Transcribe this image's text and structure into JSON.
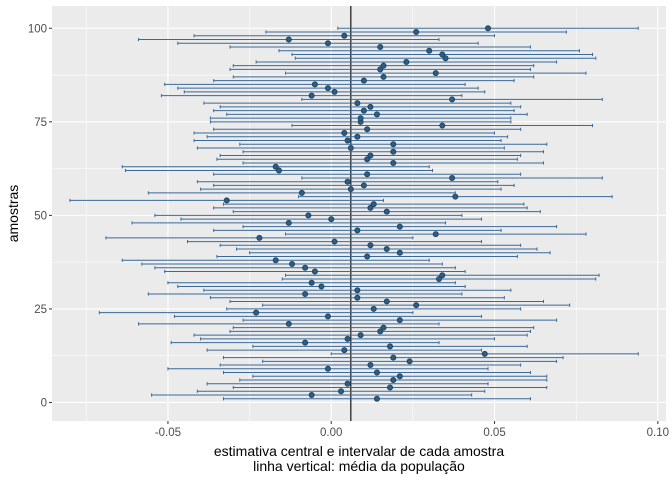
{
  "chart_data": {
    "type": "interval-dotplot",
    "xlabel_line1": "estimativa central e intervalar de cada amostra",
    "xlabel_line2": "linha vertical: média da população",
    "ylabel": "amostras",
    "xlim": [
      -0.0855,
      0.1025
    ],
    "ylim": [
      -4.95,
      105.95
    ],
    "x_ticks": [
      -0.05,
      0.0,
      0.05,
      0.1
    ],
    "x_tick_labels": [
      "-0.05",
      "0.00",
      "0.05",
      "0.10"
    ],
    "y_ticks": [
      0,
      25,
      50,
      75,
      100
    ],
    "y_tick_labels": [
      "0",
      "25",
      "50",
      "75",
      "100"
    ],
    "reference_line_x": 0.006,
    "colors": {
      "interval": "#3a6a9a",
      "point_fill": "#2c5d85",
      "point_edge": "#1f3f5a",
      "panel": "#ebebeb",
      "reference_line": "#000000"
    },
    "samples": [
      {
        "id": 1,
        "est": 0.014,
        "lo": -0.033,
        "hi": 0.061
      },
      {
        "id": 2,
        "est": -0.006,
        "lo": -0.055,
        "hi": 0.043
      },
      {
        "id": 3,
        "est": 0.003,
        "lo": -0.041,
        "hi": 0.047
      },
      {
        "id": 4,
        "est": 0.018,
        "lo": -0.03,
        "hi": 0.066
      },
      {
        "id": 5,
        "est": 0.005,
        "lo": -0.038,
        "hi": 0.048
      },
      {
        "id": 6,
        "est": 0.019,
        "lo": -0.028,
        "hi": 0.066
      },
      {
        "id": 7,
        "est": 0.021,
        "lo": -0.024,
        "hi": 0.066
      },
      {
        "id": 8,
        "est": 0.014,
        "lo": -0.033,
        "hi": 0.061
      },
      {
        "id": 9,
        "est": -0.001,
        "lo": -0.05,
        "hi": 0.048
      },
      {
        "id": 10,
        "est": 0.012,
        "lo": -0.034,
        "hi": 0.058
      },
      {
        "id": 11,
        "est": 0.024,
        "lo": -0.021,
        "hi": 0.069
      },
      {
        "id": 12,
        "est": 0.019,
        "lo": -0.033,
        "hi": 0.071
      },
      {
        "id": 13,
        "est": 0.047,
        "lo": 0.0,
        "hi": 0.094
      },
      {
        "id": 14,
        "est": 0.004,
        "lo": -0.038,
        "hi": 0.046
      },
      {
        "id": 15,
        "est": 0.018,
        "lo": -0.024,
        "hi": 0.06
      },
      {
        "id": 16,
        "est": -0.008,
        "lo": -0.049,
        "hi": 0.033
      },
      {
        "id": 17,
        "est": 0.005,
        "lo": -0.04,
        "hi": 0.05
      },
      {
        "id": 18,
        "est": 0.009,
        "lo": -0.042,
        "hi": 0.06
      },
      {
        "id": 19,
        "est": 0.015,
        "lo": -0.031,
        "hi": 0.061
      },
      {
        "id": 20,
        "est": 0.016,
        "lo": -0.03,
        "hi": 0.062
      },
      {
        "id": 21,
        "est": -0.013,
        "lo": -0.059,
        "hi": 0.033
      },
      {
        "id": 22,
        "est": 0.021,
        "lo": -0.027,
        "hi": 0.069
      },
      {
        "id": 23,
        "est": -0.001,
        "lo": -0.048,
        "hi": 0.046
      },
      {
        "id": 24,
        "est": -0.023,
        "lo": -0.071,
        "hi": 0.025
      },
      {
        "id": 25,
        "est": 0.013,
        "lo": -0.032,
        "hi": 0.058
      },
      {
        "id": 26,
        "est": 0.026,
        "lo": -0.021,
        "hi": 0.073
      },
      {
        "id": 27,
        "est": 0.017,
        "lo": -0.031,
        "hi": 0.065
      },
      {
        "id": 28,
        "est": 0.008,
        "lo": -0.037,
        "hi": 0.053
      },
      {
        "id": 29,
        "est": -0.008,
        "lo": -0.056,
        "hi": 0.04
      },
      {
        "id": 30,
        "est": 0.008,
        "lo": -0.039,
        "hi": 0.055
      },
      {
        "id": 31,
        "est": -0.003,
        "lo": -0.047,
        "hi": 0.041
      },
      {
        "id": 32,
        "est": -0.006,
        "lo": -0.05,
        "hi": 0.038
      },
      {
        "id": 33,
        "est": 0.033,
        "lo": -0.015,
        "hi": 0.081
      },
      {
        "id": 34,
        "est": 0.034,
        "lo": -0.014,
        "hi": 0.082
      },
      {
        "id": 35,
        "est": -0.005,
        "lo": -0.051,
        "hi": 0.041
      },
      {
        "id": 36,
        "est": -0.008,
        "lo": -0.054,
        "hi": 0.038
      },
      {
        "id": 37,
        "est": -0.012,
        "lo": -0.058,
        "hi": 0.034
      },
      {
        "id": 38,
        "est": -0.017,
        "lo": -0.064,
        "hi": 0.03
      },
      {
        "id": 39,
        "est": 0.011,
        "lo": -0.035,
        "hi": 0.057
      },
      {
        "id": 40,
        "est": 0.021,
        "lo": -0.025,
        "hi": 0.067
      },
      {
        "id": 41,
        "est": 0.017,
        "lo": -0.029,
        "hi": 0.063
      },
      {
        "id": 42,
        "est": 0.012,
        "lo": -0.034,
        "hi": 0.058
      },
      {
        "id": 43,
        "est": 0.001,
        "lo": -0.044,
        "hi": 0.046
      },
      {
        "id": 44,
        "est": -0.022,
        "lo": -0.069,
        "hi": 0.025
      },
      {
        "id": 45,
        "est": 0.032,
        "lo": -0.014,
        "hi": 0.078
      },
      {
        "id": 46,
        "est": 0.008,
        "lo": -0.036,
        "hi": 0.052
      },
      {
        "id": 47,
        "est": 0.021,
        "lo": -0.027,
        "hi": 0.069
      },
      {
        "id": 48,
        "est": -0.013,
        "lo": -0.061,
        "hi": 0.035
      },
      {
        "id": 49,
        "est": 0.0,
        "lo": -0.046,
        "hi": 0.046
      },
      {
        "id": 50,
        "est": -0.007,
        "lo": -0.054,
        "hi": 0.04
      },
      {
        "id": 51,
        "est": 0.017,
        "lo": -0.03,
        "hi": 0.064
      },
      {
        "id": 52,
        "est": 0.012,
        "lo": -0.036,
        "hi": 0.06
      },
      {
        "id": 53,
        "est": 0.013,
        "lo": -0.033,
        "hi": 0.059
      },
      {
        "id": 54,
        "est": -0.032,
        "lo": -0.08,
        "hi": 0.016
      },
      {
        "id": 55,
        "est": 0.038,
        "lo": -0.01,
        "hi": 0.086
      },
      {
        "id": 56,
        "est": -0.009,
        "lo": -0.056,
        "hi": 0.038
      },
      {
        "id": 57,
        "est": 0.006,
        "lo": -0.04,
        "hi": 0.052
      },
      {
        "id": 58,
        "est": 0.01,
        "lo": -0.036,
        "hi": 0.056
      },
      {
        "id": 59,
        "est": 0.005,
        "lo": -0.041,
        "hi": 0.051
      },
      {
        "id": 60,
        "est": 0.037,
        "lo": -0.009,
        "hi": 0.083
      },
      {
        "id": 61,
        "est": 0.011,
        "lo": -0.036,
        "hi": 0.058
      },
      {
        "id": 62,
        "est": -0.016,
        "lo": -0.063,
        "hi": 0.031
      },
      {
        "id": 63,
        "est": -0.017,
        "lo": -0.064,
        "hi": 0.03
      },
      {
        "id": 64,
        "est": 0.019,
        "lo": -0.027,
        "hi": 0.065
      },
      {
        "id": 65,
        "est": 0.011,
        "lo": -0.035,
        "hi": 0.057
      },
      {
        "id": 66,
        "est": 0.012,
        "lo": -0.034,
        "hi": 0.058
      },
      {
        "id": 67,
        "est": 0.019,
        "lo": -0.027,
        "hi": 0.065
      },
      {
        "id": 68,
        "est": 0.006,
        "lo": -0.041,
        "hi": 0.053
      },
      {
        "id": 69,
        "est": 0.019,
        "lo": -0.028,
        "hi": 0.066
      },
      {
        "id": 70,
        "est": 0.005,
        "lo": -0.042,
        "hi": 0.052
      },
      {
        "id": 71,
        "est": 0.008,
        "lo": -0.038,
        "hi": 0.054
      },
      {
        "id": 72,
        "est": 0.004,
        "lo": -0.042,
        "hi": 0.05
      },
      {
        "id": 73,
        "est": 0.011,
        "lo": -0.036,
        "hi": 0.058
      },
      {
        "id": 74,
        "est": 0.034,
        "lo": -0.012,
        "hi": 0.08
      },
      {
        "id": 75,
        "est": 0.009,
        "lo": -0.037,
        "hi": 0.055
      },
      {
        "id": 76,
        "est": 0.009,
        "lo": -0.037,
        "hi": 0.055
      },
      {
        "id": 77,
        "est": 0.014,
        "lo": -0.032,
        "hi": 0.06
      },
      {
        "id": 78,
        "est": 0.01,
        "lo": -0.036,
        "hi": 0.056
      },
      {
        "id": 79,
        "est": 0.012,
        "lo": -0.034,
        "hi": 0.058
      },
      {
        "id": 80,
        "est": 0.008,
        "lo": -0.039,
        "hi": 0.055
      },
      {
        "id": 81,
        "est": 0.037,
        "lo": -0.009,
        "hi": 0.083
      },
      {
        "id": 82,
        "est": -0.006,
        "lo": -0.052,
        "hi": 0.04
      },
      {
        "id": 83,
        "est": 0.001,
        "lo": -0.045,
        "hi": 0.047
      },
      {
        "id": 84,
        "est": -0.001,
        "lo": -0.047,
        "hi": 0.045
      },
      {
        "id": 85,
        "est": -0.005,
        "lo": -0.051,
        "hi": 0.041
      },
      {
        "id": 86,
        "est": 0.01,
        "lo": -0.036,
        "hi": 0.056
      },
      {
        "id": 87,
        "est": 0.016,
        "lo": -0.03,
        "hi": 0.062
      },
      {
        "id": 88,
        "est": 0.032,
        "lo": -0.014,
        "hi": 0.078
      },
      {
        "id": 89,
        "est": 0.015,
        "lo": -0.031,
        "hi": 0.061
      },
      {
        "id": 90,
        "est": 0.016,
        "lo": -0.03,
        "hi": 0.062
      },
      {
        "id": 91,
        "est": 0.023,
        "lo": -0.023,
        "hi": 0.069
      },
      {
        "id": 92,
        "est": 0.035,
        "lo": -0.011,
        "hi": 0.081
      },
      {
        "id": 93,
        "est": 0.034,
        "lo": -0.012,
        "hi": 0.08
      },
      {
        "id": 94,
        "est": 0.03,
        "lo": -0.016,
        "hi": 0.076
      },
      {
        "id": 95,
        "est": 0.015,
        "lo": -0.031,
        "hi": 0.061
      },
      {
        "id": 96,
        "est": -0.001,
        "lo": -0.047,
        "hi": 0.045
      },
      {
        "id": 97,
        "est": -0.013,
        "lo": -0.059,
        "hi": 0.033
      },
      {
        "id": 98,
        "est": 0.004,
        "lo": -0.042,
        "hi": 0.05
      },
      {
        "id": 99,
        "est": 0.026,
        "lo": -0.02,
        "hi": 0.072
      },
      {
        "id": 100,
        "est": 0.048,
        "lo": 0.002,
        "hi": 0.094
      }
    ]
  }
}
